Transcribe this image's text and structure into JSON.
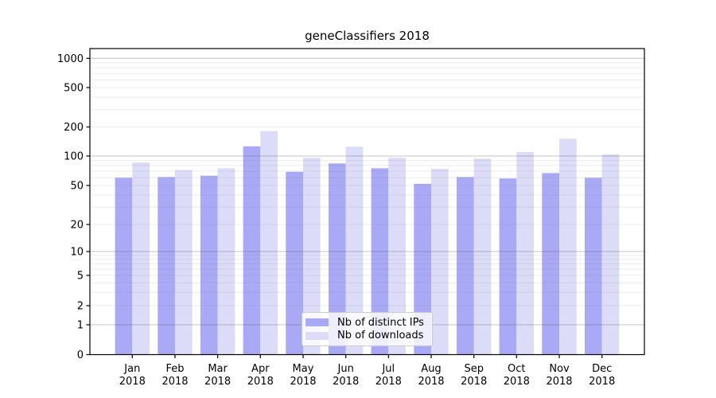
{
  "figure": {
    "background": "#ffffff"
  },
  "chart_data": {
    "type": "bar",
    "title": "geneClassifiers 2018",
    "categories": [
      "Jan",
      "Feb",
      "Mar",
      "Apr",
      "May",
      "Jun",
      "Jul",
      "Aug",
      "Sep",
      "Oct",
      "Nov",
      "Dec"
    ],
    "category_year": "2018",
    "series": [
      {
        "name": "Nb of distinct IPs",
        "color": "#a9a9f5",
        "values": [
          60,
          61,
          63,
          126,
          69,
          84,
          75,
          52,
          61,
          59,
          67,
          60
        ]
      },
      {
        "name": "Nb of downloads",
        "color": "#dcdcf8",
        "values": [
          86,
          72,
          75,
          182,
          96,
          125,
          96,
          74,
          94,
          110,
          151,
          104
        ]
      }
    ],
    "xlabel": "",
    "ylabel": "",
    "yscale": "log-with-zero",
    "yticks": [
      0,
      1,
      2,
      5,
      10,
      20,
      50,
      100,
      200,
      500,
      1000
    ],
    "ylim": [
      0,
      1000
    ],
    "grid": "on",
    "grid_major_color": "#c4c4c4",
    "grid_minor_color": "#eeeeee",
    "axis_color": "#000000",
    "legend_position": "lower-center-inside"
  }
}
